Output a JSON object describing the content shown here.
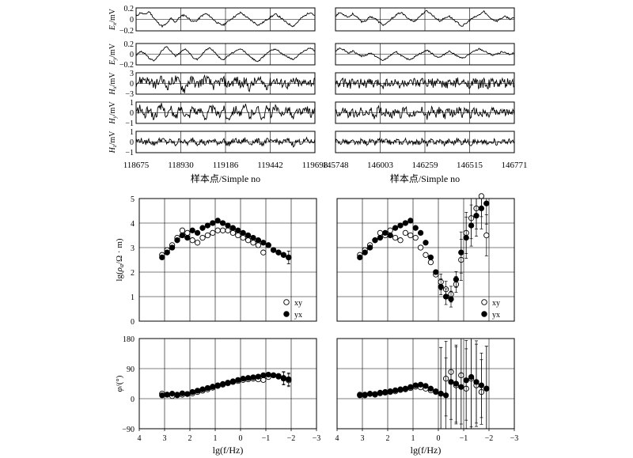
{
  "chart_data": [
    {
      "type": "line",
      "panel": "time-series-left",
      "x_ticks": [
        "118675",
        "118930",
        "119186",
        "119442",
        "119698"
      ],
      "xlabel": "样本点/Simple no",
      "channels": [
        {
          "label_main": "E",
          "label_sub": "x",
          "label_unit": "/mV",
          "ticks": [
            "0.2",
            "0",
            "−0.2"
          ],
          "ylim": [
            -0.2,
            0.2
          ],
          "values": [
            0.05,
            0.12,
            0.08,
            0.14,
            0.03,
            -0.06,
            -0.12,
            -0.08,
            0.02,
            -0.05,
            0.04,
            0.08,
            0.02,
            -0.04,
            -0.02,
            0.06,
            0.1,
            0.05,
            -0.02,
            -0.08,
            -0.1,
            -0.04,
            0.02,
            0.07,
            0.12,
            0.06,
            0.0,
            -0.05,
            -0.1,
            -0.06,
            0.0,
            0.05,
            0.09,
            0.04,
            -0.03,
            -0.08,
            -0.12,
            -0.05,
            0.03,
            0.08,
            0.13,
            0.06
          ]
        },
        {
          "label_main": "E",
          "label_sub": "y",
          "label_unit": "/mV",
          "ticks": [
            "0.2",
            "0",
            "−0.2"
          ],
          "ylim": [
            -0.2,
            0.2
          ],
          "values": [
            -0.02,
            0.05,
            0.02,
            -0.08,
            -0.12,
            -0.05,
            0.08,
            0.14,
            0.06,
            -0.04,
            0.02,
            0.1,
            0.05,
            -0.06,
            -0.1,
            -0.02,
            0.08,
            0.12,
            0.04,
            -0.06,
            -0.1,
            -0.04,
            0.02,
            0.06,
            0.1,
            0.04,
            -0.04,
            -0.1,
            -0.14,
            -0.06,
            0.02,
            0.08,
            0.1,
            0.04,
            -0.02,
            -0.06,
            -0.1,
            -0.04,
            0.04,
            0.08,
            0.12,
            0.06
          ]
        },
        {
          "label_main": "H",
          "label_sub": "x",
          "label_unit": "/mV",
          "ticks": [
            "3",
            "0",
            "−3"
          ],
          "ylim": [
            -3,
            3
          ],
          "values": [
            0.2,
            0.8,
            1.4,
            0.5,
            -0.6,
            0.3,
            1.0,
            -0.8,
            0.4,
            1.3,
            0.2,
            -1.8,
            0.6,
            0.9,
            -0.4,
            0.5,
            1.5,
            0.1,
            -0.7,
            0.4,
            0.9,
            -0.3,
            0.2,
            1.1,
            -0.5,
            0.6,
            -1.2,
            0.3,
            0.8,
            0.2,
            -0.6,
            0.5,
            1.0,
            -0.2,
            0.4,
            -0.8,
            0.6,
            0.3,
            -0.4,
            0.7,
            0.2,
            0.5
          ]
        },
        {
          "label_main": "H",
          "label_sub": "y",
          "label_unit": "/mV",
          "ticks": [
            "1",
            "0",
            "−1"
          ],
          "ylim": [
            -1,
            1
          ],
          "values": [
            0.1,
            0.4,
            -0.3,
            0.5,
            -0.5,
            0.2,
            0.6,
            -0.2,
            0.3,
            -0.6,
            0.5,
            0.1,
            -0.4,
            0.6,
            -0.1,
            0.3,
            -0.5,
            0.4,
            0.2,
            -0.3,
            0.5,
            -0.6,
            0.1,
            0.4,
            -0.2,
            0.6,
            -0.4,
            0.2,
            0.3,
            -0.5,
            0.4,
            -0.1,
            0.5,
            -0.3,
            0.2,
            0.4,
            -0.6,
            0.3,
            -0.2,
            0.5,
            -0.1,
            0.2
          ]
        },
        {
          "label_main": "H",
          "label_sub": "z",
          "label_unit": "/mV",
          "ticks": [
            "1",
            "0",
            "−1"
          ],
          "ylim": [
            -1,
            1
          ],
          "values": [
            0.05,
            0.2,
            -0.1,
            0.15,
            -0.2,
            0.1,
            0.25,
            -0.05,
            0.1,
            -0.25,
            0.2,
            0.0,
            -0.15,
            0.3,
            -0.1,
            0.1,
            -0.2,
            0.15,
            0.05,
            -0.1,
            0.2,
            -0.25,
            0.05,
            0.15,
            -0.1,
            0.25,
            -0.15,
            0.05,
            0.1,
            -0.2,
            0.15,
            -0.05,
            0.2,
            -0.1,
            0.05,
            0.15,
            -0.25,
            0.1,
            -0.05,
            0.2,
            0.0,
            0.1
          ]
        }
      ]
    },
    {
      "type": "line",
      "panel": "time-series-right",
      "x_ticks": [
        "145748",
        "146003",
        "146259",
        "146515",
        "146771"
      ],
      "xlabel": "样本点/Simple no",
      "channels": [
        {
          "ylim": [
            -0.2,
            0.2
          ],
          "values": [
            0.06,
            0.12,
            0.08,
            0.04,
            0.1,
            0.03,
            -0.04,
            -0.02,
            0.05,
            0.02,
            -0.05,
            -0.1,
            -0.06,
            0.02,
            0.08,
            0.12,
            0.06,
            0.0,
            -0.04,
            0.03,
            0.1,
            0.15,
            0.09,
            0.02,
            -0.03,
            0.02,
            0.06,
            0.0,
            -0.06,
            -0.12,
            -0.07,
            0.0,
            0.04,
            0.08,
            0.14,
            0.06,
            0.0,
            -0.03,
            0.02,
            0.05,
            0.01,
            0.02
          ]
        },
        {
          "ylim": [
            -0.2,
            0.2
          ],
          "values": [
            0.06,
            0.12,
            0.08,
            0.02,
            0.06,
            0.01,
            -0.04,
            -0.02,
            0.03,
            -0.03,
            -0.08,
            -0.12,
            -0.06,
            0.0,
            0.04,
            -0.02,
            -0.08,
            -0.1,
            -0.06,
            0.0,
            0.03,
            0.08,
            0.02,
            -0.04,
            -0.06,
            0.0,
            0.06,
            0.02,
            -0.04,
            -0.08,
            -0.04,
            0.02,
            0.06,
            0.1,
            0.06,
            0.02,
            -0.02,
            0.0,
            0.04,
            0.02,
            0.0,
            0.02
          ]
        },
        {
          "ylim": [
            -3,
            3
          ],
          "values": [
            0.3,
            -0.3,
            0.4,
            -0.4,
            0.2,
            -0.5,
            0.5,
            -0.2,
            0.3,
            -0.4,
            0.4,
            -0.3,
            0.5,
            -0.2,
            0.3,
            -0.5,
            0.4,
            -0.3,
            0.2,
            -0.4,
            0.5,
            -0.3,
            0.3,
            -0.2,
            0.4,
            -0.5,
            0.3,
            -0.3,
            0.4,
            -0.2,
            0.5,
            -0.4,
            0.3,
            -0.3,
            0.2,
            -0.4,
            0.4,
            -0.3,
            0.3,
            -0.2,
            0.4,
            -0.3
          ]
        },
        {
          "ylim": [
            -1,
            1
          ],
          "values": [
            0.2,
            -0.2,
            0.3,
            -0.3,
            0.1,
            -0.4,
            0.3,
            -0.2,
            0.2,
            -0.3,
            0.4,
            -0.1,
            0.2,
            -0.3,
            0.3,
            -0.2,
            0.4,
            -0.3,
            0.1,
            -0.2,
            0.3,
            -0.4,
            0.2,
            -0.1,
            0.3,
            -0.3,
            0.2,
            -0.2,
            0.4,
            -0.1,
            0.3,
            -0.3,
            0.2,
            -0.2,
            0.1,
            -0.4,
            0.3,
            -0.2,
            0.2,
            -0.1,
            0.3,
            -0.2
          ]
        },
        {
          "ylim": [
            -1,
            1
          ],
          "values": [
            0.1,
            -0.1,
            0.15,
            -0.15,
            0.05,
            -0.2,
            0.15,
            -0.1,
            0.1,
            -0.15,
            0.2,
            -0.05,
            0.1,
            -0.15,
            0.15,
            -0.1,
            0.2,
            -0.15,
            0.05,
            -0.1,
            0.15,
            -0.2,
            0.1,
            -0.05,
            0.15,
            -0.15,
            0.1,
            -0.1,
            0.2,
            -0.05,
            0.15,
            -0.15,
            0.1,
            -0.1,
            0.05,
            -0.2,
            0.15,
            -0.1,
            0.1,
            -0.05,
            0.15,
            -0.1
          ]
        }
      ]
    },
    {
      "type": "scatter",
      "panel": "resistivity-left",
      "ylabel": "lg(ρa/Ω·m)",
      "ylim": [
        0,
        5
      ],
      "y_ticks": [
        0,
        1,
        2,
        3,
        4,
        5
      ],
      "xlim": [
        4,
        -3
      ],
      "legend": [
        "xy",
        "yx"
      ],
      "legend_position": "bottom-right",
      "series": [
        {
          "name": "xy",
          "marker": "open-circle",
          "x": [
            3.1,
            2.9,
            2.7,
            2.5,
            2.3,
            2.1,
            1.9,
            1.7,
            1.5,
            1.3,
            1.1,
            0.9,
            0.7,
            0.5,
            0.3,
            0.1,
            -0.1,
            -0.3,
            -0.5,
            -0.7,
            -0.9,
            -1.1,
            -1.3,
            -1.5,
            -1.7,
            -1.9
          ],
          "y": [
            2.7,
            2.9,
            3.1,
            3.4,
            3.7,
            3.6,
            3.3,
            3.2,
            3.4,
            3.5,
            3.6,
            3.7,
            3.7,
            3.7,
            3.6,
            3.5,
            3.4,
            3.3,
            3.2,
            3.1,
            2.8,
            3.1,
            2.9,
            2.8,
            2.7,
            2.6
          ]
        },
        {
          "name": "yx",
          "marker": "filled-circle",
          "x": [
            3.1,
            2.9,
            2.7,
            2.5,
            2.3,
            2.1,
            1.9,
            1.7,
            1.5,
            1.3,
            1.1,
            0.9,
            0.7,
            0.5,
            0.3,
            0.1,
            -0.1,
            -0.3,
            -0.5,
            -0.7,
            -0.9,
            -1.1,
            -1.3,
            -1.5,
            -1.7,
            -1.9
          ],
          "y": [
            2.6,
            2.8,
            3.0,
            3.3,
            3.5,
            3.4,
            3.7,
            3.6,
            3.8,
            3.9,
            4.0,
            4.1,
            4.0,
            3.9,
            3.8,
            3.7,
            3.6,
            3.5,
            3.4,
            3.3,
            3.2,
            3.1,
            2.9,
            2.8,
            2.7,
            2.6
          ]
        }
      ]
    },
    {
      "type": "scatter",
      "panel": "resistivity-right",
      "ylim": [
        0,
        5
      ],
      "xlim": [
        4,
        -3
      ],
      "legend": [
        "xy",
        "yx"
      ],
      "legend_position": "bottom-right",
      "series": [
        {
          "name": "xy",
          "marker": "open-circle",
          "x": [
            3.1,
            2.9,
            2.7,
            2.5,
            2.3,
            2.1,
            1.9,
            1.7,
            1.5,
            1.3,
            1.1,
            0.9,
            0.7,
            0.5,
            0.3,
            0.1,
            -0.1,
            -0.3,
            -0.5,
            -0.7,
            -0.9,
            -1.1,
            -1.3,
            -1.5,
            -1.7,
            -1.9
          ],
          "y": [
            2.7,
            2.9,
            3.1,
            3.3,
            3.6,
            3.5,
            3.7,
            3.4,
            3.3,
            3.6,
            3.5,
            3.4,
            3.0,
            2.7,
            2.4,
            1.9,
            1.6,
            1.3,
            1.1,
            1.5,
            2.5,
            3.6,
            4.2,
            4.6,
            5.1,
            3.5
          ]
        },
        {
          "name": "yx",
          "marker": "filled-circle",
          "x": [
            3.1,
            2.9,
            2.7,
            2.5,
            2.3,
            2.1,
            1.9,
            1.7,
            1.5,
            1.3,
            1.1,
            0.9,
            0.7,
            0.5,
            0.3,
            0.1,
            -0.1,
            -0.3,
            -0.5,
            -0.7,
            -0.9,
            -1.1,
            -1.3,
            -1.5,
            -1.7,
            -1.9
          ],
          "y": [
            2.6,
            2.8,
            3.0,
            3.3,
            3.4,
            3.6,
            3.5,
            3.8,
            3.9,
            4.0,
            4.1,
            3.8,
            3.6,
            3.2,
            2.6,
            2.0,
            1.4,
            1.0,
            0.9,
            1.7,
            2.8,
            3.4,
            3.9,
            4.3,
            4.6,
            4.8
          ]
        }
      ]
    },
    {
      "type": "scatter",
      "panel": "phase-left",
      "ylabel": "φ/(°)",
      "ylim": [
        -90,
        180
      ],
      "y_ticks": [
        180,
        90,
        0,
        -90
      ],
      "xlim": [
        4,
        -3
      ],
      "x_ticks": [
        4,
        3,
        2,
        1,
        0,
        -1,
        -2,
        -3
      ],
      "xlabel": "lg(f/Hz)",
      "series": [
        {
          "name": "xy",
          "marker": "open-circle",
          "x": [
            3.1,
            2.9,
            2.7,
            2.5,
            2.3,
            2.1,
            1.9,
            1.7,
            1.5,
            1.3,
            1.1,
            0.9,
            0.7,
            0.5,
            0.3,
            0.1,
            -0.1,
            -0.3,
            -0.5,
            -0.7,
            -0.9,
            -1.1,
            -1.3,
            -1.5,
            -1.7,
            -1.9
          ],
          "y": [
            15,
            12,
            8,
            10,
            12,
            14,
            16,
            20,
            24,
            28,
            33,
            38,
            42,
            46,
            50,
            53,
            56,
            58,
            60,
            58,
            56,
            65,
            70,
            68,
            60,
            55
          ]
        },
        {
          "name": "yx",
          "marker": "filled-circle",
          "x": [
            3.1,
            2.9,
            2.7,
            2.5,
            2.3,
            2.1,
            1.9,
            1.7,
            1.5,
            1.3,
            1.1,
            0.9,
            0.7,
            0.5,
            0.3,
            0.1,
            -0.1,
            -0.3,
            -0.5,
            -0.7,
            -0.9,
            -1.1,
            -1.3,
            -1.5,
            -1.7,
            -1.9
          ],
          "y": [
            10,
            12,
            15,
            12,
            16,
            14,
            20,
            24,
            28,
            32,
            36,
            40,
            44,
            48,
            52,
            56,
            60,
            62,
            64,
            66,
            70,
            72,
            70,
            66,
            62,
            58
          ]
        }
      ]
    },
    {
      "type": "scatter",
      "panel": "phase-right",
      "ylim": [
        -90,
        180
      ],
      "xlim": [
        4,
        -3
      ],
      "x_ticks": [
        4,
        3,
        2,
        1,
        0,
        -1,
        -2,
        -3
      ],
      "xlabel": "lg(f/Hz)",
      "series": [
        {
          "name": "xy",
          "marker": "open-circle",
          "x": [
            3.1,
            2.9,
            2.7,
            2.5,
            2.3,
            2.1,
            1.9,
            1.7,
            1.5,
            1.3,
            1.1,
            0.9,
            0.7,
            0.5,
            0.3,
            0.1,
            -0.1,
            -0.3,
            -0.5,
            -0.7,
            -0.9,
            -1.1,
            -1.3,
            -1.5,
            -1.7,
            -1.9
          ],
          "y": [
            12,
            10,
            14,
            12,
            16,
            18,
            20,
            22,
            26,
            28,
            32,
            36,
            34,
            30,
            25,
            20,
            15,
            60,
            80,
            40,
            70,
            30,
            60,
            40,
            20,
            30
          ]
        },
        {
          "name": "yx",
          "marker": "filled-circle",
          "x": [
            3.1,
            2.9,
            2.7,
            2.5,
            2.3,
            2.1,
            1.9,
            1.7,
            1.5,
            1.3,
            1.1,
            0.9,
            0.7,
            0.5,
            0.3,
            0.1,
            -0.1,
            -0.3,
            -0.5,
            -0.7,
            -0.9,
            -1.1,
            -1.3,
            -1.5,
            -1.7,
            -1.9
          ],
          "y": [
            10,
            12,
            15,
            14,
            18,
            20,
            22,
            25,
            28,
            30,
            35,
            40,
            42,
            38,
            30,
            22,
            15,
            10,
            50,
            45,
            35,
            55,
            65,
            50,
            40,
            30
          ]
        }
      ]
    }
  ]
}
